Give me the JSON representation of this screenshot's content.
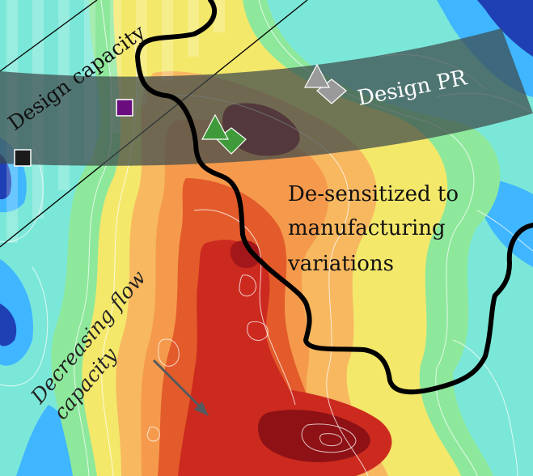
{
  "labels": {
    "design_capacity": "Design capacity",
    "design_pr": "Design PR",
    "desensitized_line1": "De-sensitized to",
    "desensitized_line2": "manufacturing",
    "desensitized_line3": "variations",
    "decreasing_line1": "Decreasing flow",
    "decreasing_line2": "capacity"
  },
  "colors": {
    "deep_blue": "#1f3fb4",
    "light_blue": "#3fb6ff",
    "cyan": "#63e3d6",
    "green": "#8ee89b",
    "yellow": "#f4e86b",
    "orange": "#f59a4c",
    "red_orange": "#e35b2a",
    "red": "#cc2a1f",
    "dark_red": "#8e1116",
    "band_gray": "#3d4a4b",
    "boundary": "#000000",
    "marker_purple": "#6a0b7e",
    "marker_black": "#1b1b1b",
    "marker_green": "#3f9a3a",
    "marker_gray": "#9a9a9a",
    "annotation_text_light": "#ffffff",
    "annotation_text_dark": "#111111"
  }
}
